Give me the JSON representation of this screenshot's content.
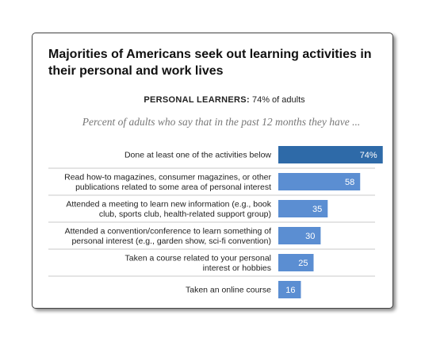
{
  "header": {
    "title": "Majorities of Americans seek out learning activities in their personal and work lives",
    "lead_label": "PERSONAL LEARNERS:",
    "lead_value": "74% of adults",
    "note": "Percent of adults who say that in the past 12 months they have ..."
  },
  "colors": {
    "highlight": "#2e6aa8",
    "bar": "#5b8ed2",
    "divider": "#c8c8c8"
  },
  "chart_data": {
    "type": "bar",
    "orientation": "horizontal",
    "categories": [
      [
        "Done at least one of the activities below"
      ],
      [
        "Read how-to magazines, consumer magazines, or other",
        "publications related to some area of personal interest"
      ],
      [
        "Attended a meeting to learn new information (e.g., book",
        "club, sports club, health-related support group)"
      ],
      [
        "Attended a convention/conference to learn something of",
        "personal interest (e.g., garden show, sci-fi convention)"
      ],
      [
        "Taken a course related to your personal",
        "interest or hobbies"
      ],
      [
        "Taken an online course"
      ]
    ],
    "values": [
      74,
      58,
      35,
      30,
      25,
      16
    ],
    "value_labels": [
      "74%",
      "58",
      "35",
      "30",
      "25",
      "16"
    ],
    "xlim": [
      0,
      100
    ],
    "highlight_index": 0
  }
}
